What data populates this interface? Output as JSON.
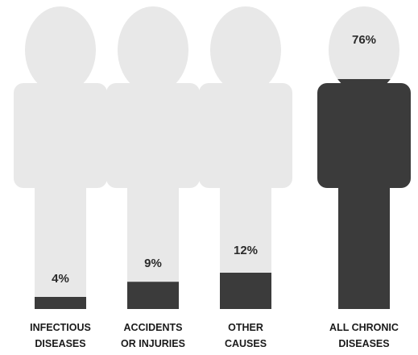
{
  "chart_data": {
    "type": "bar",
    "categories": [
      [
        "INFECTIOUS",
        "DISEASES"
      ],
      [
        "ACCIDENTS",
        "OR INJURIES"
      ],
      [
        "OTHER",
        "CAUSES"
      ],
      [
        "ALL CHRONIC",
        "DISEASES"
      ]
    ],
    "values": [
      4,
      9,
      12,
      76
    ],
    "value_labels": [
      "4%",
      "9%",
      "12%",
      "76%"
    ],
    "ylim": [
      0,
      100
    ],
    "colors": {
      "fill": "#3b3b3b",
      "empty": "#e8e8e8"
    }
  }
}
